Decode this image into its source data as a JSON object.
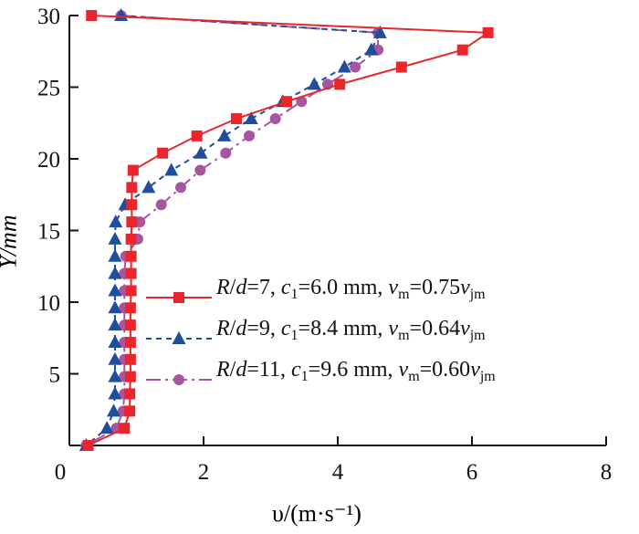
{
  "chart_data": {
    "type": "line",
    "title": "",
    "xlabel": "υ/(m·s⁻¹)",
    "ylabel": "Y/mm",
    "xlim": [
      0,
      8
    ],
    "ylim": [
      0,
      30
    ],
    "xticks": [
      "0",
      "2",
      "4",
      "6",
      "8"
    ],
    "yticks": [
      "5",
      "10",
      "15",
      "20",
      "25",
      "30"
    ],
    "grid": false,
    "legend_position": "right-middle",
    "y": [
      30,
      28.8,
      27.6,
      26.4,
      25.2,
      24.0,
      22.8,
      21.6,
      20.4,
      19.2,
      18.0,
      16.8,
      15.6,
      14.4,
      13.2,
      12.0,
      10.8,
      9.6,
      8.4,
      7.2,
      6.0,
      4.8,
      3.6,
      2.4,
      1.2,
      0
    ],
    "series": [
      {
        "name": "R/d=7, c1=6.0 mm, vm=0.75vjm",
        "color": "#e8262b",
        "marker": "square",
        "dash": "solid",
        "legend_parts": [
          [
            "R",
            1
          ],
          [
            "/",
            0
          ],
          [
            "d",
            1
          ],
          [
            "=7, ",
            0
          ],
          [
            "c",
            1
          ],
          [
            "1",
            2
          ],
          [
            "=6.0 mm, ",
            0
          ],
          [
            "v",
            1
          ],
          [
            "m",
            2
          ],
          [
            "=0.75",
            0
          ],
          [
            "v",
            1
          ],
          [
            "jm",
            2
          ]
        ],
        "values": [
          0.33,
          6.24,
          5.86,
          4.95,
          4.03,
          3.24,
          2.49,
          1.9,
          1.39,
          0.95,
          0.93,
          0.93,
          0.93,
          0.92,
          0.92,
          0.92,
          0.92,
          0.91,
          0.91,
          0.91,
          0.91,
          0.91,
          0.9,
          0.9,
          0.82,
          0.28
        ]
      },
      {
        "name": "R/d=9, c1=8.4 mm, vm=0.64vjm",
        "color": "#1f4e9c",
        "marker": "triangle",
        "dash": "dashed",
        "legend_parts": [
          [
            "R",
            1
          ],
          [
            "/",
            0
          ],
          [
            "d",
            1
          ],
          [
            "=9, ",
            0
          ],
          [
            "c",
            1
          ],
          [
            "1",
            2
          ],
          [
            "=8.4 mm, ",
            0
          ],
          [
            "v",
            1
          ],
          [
            "m",
            2
          ],
          [
            "=0.64",
            0
          ],
          [
            "v",
            1
          ],
          [
            "jm",
            2
          ]
        ],
        "values": [
          0.77,
          4.63,
          4.5,
          4.1,
          3.65,
          3.18,
          2.71,
          2.31,
          1.96,
          1.52,
          1.18,
          0.83,
          0.69,
          0.68,
          0.68,
          0.68,
          0.68,
          0.68,
          0.68,
          0.68,
          0.68,
          0.68,
          0.68,
          0.66,
          0.56,
          0.25
        ]
      },
      {
        "name": "R/d=11, c1=9.6 mm, vm=0.60vjm",
        "color": "#a855a0",
        "marker": "circle",
        "dash": "dashdot",
        "legend_parts": [
          [
            "R",
            1
          ],
          [
            "/",
            0
          ],
          [
            "d",
            1
          ],
          [
            "=11, ",
            0
          ],
          [
            "c",
            1
          ],
          [
            "1",
            2
          ],
          [
            "=9.6 mm, ",
            0
          ],
          [
            "v",
            1
          ],
          [
            "m",
            2
          ],
          [
            "=0.60",
            0
          ],
          [
            "v",
            1
          ],
          [
            "jm",
            2
          ]
        ],
        "values": [
          0.77,
          4.6,
          4.6,
          4.26,
          3.85,
          3.46,
          3.07,
          2.68,
          2.33,
          1.95,
          1.66,
          1.37,
          1.05,
          1.02,
          0.84,
          0.82,
          0.82,
          0.82,
          0.82,
          0.82,
          0.82,
          0.82,
          0.82,
          0.8,
          0.7,
          0.25
        ]
      }
    ]
  }
}
